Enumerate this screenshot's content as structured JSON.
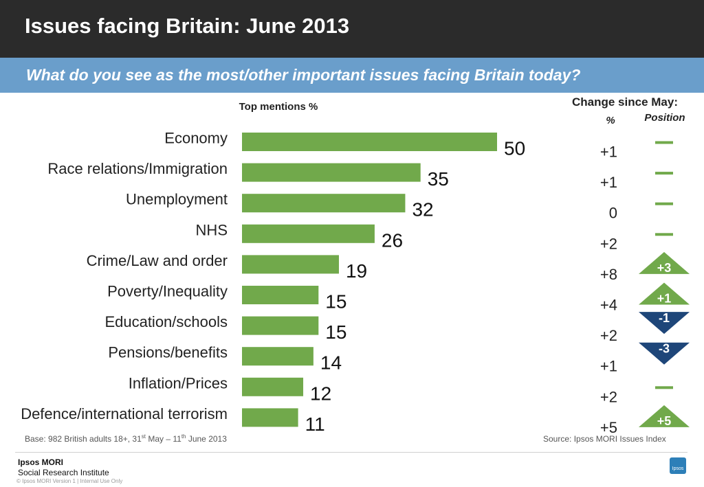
{
  "header": {
    "title": "Issues facing Britain: June 2013",
    "question": "What do you see as the most/other important issues facing Britain today?"
  },
  "chart_data": {
    "type": "bar",
    "orientation": "horizontal",
    "title": "Issues facing Britain: June 2013",
    "value_header": "Top mentions %",
    "change_header": "Change since May:",
    "change_pct_header": "%",
    "change_position_header": "Position",
    "categories": [
      "Economy",
      "Race relations/Immigration",
      "Unemployment",
      "NHS",
      "Crime/Law and order",
      "Poverty/Inequality",
      "Education/schools",
      "Pensions/benefits",
      "Inflation/Prices",
      "Defence/international terrorism"
    ],
    "values": [
      50,
      35,
      32,
      26,
      19,
      15,
      15,
      14,
      12,
      11
    ],
    "change_pct": [
      "+1",
      "+1",
      "0",
      "+2",
      "+8",
      "+4",
      "+2",
      "+1",
      "+2",
      "+5"
    ],
    "position_change": [
      "none",
      "none",
      "none",
      "none",
      "+3",
      "+1",
      "-1",
      "-3",
      "none",
      "+5"
    ],
    "xlim": [
      0,
      100
    ],
    "colors": {
      "bar": "#71a94b",
      "up": "#71a94b",
      "down": "#1e4679",
      "dash": "#71a94b"
    }
  },
  "notes": {
    "base_pre": "Base: 982 British adults 18+, 31",
    "base_sup1": "st",
    "base_mid": " May – 11",
    "base_sup2": "th",
    "base_post": " June 2013",
    "source": "Source: Ipsos MORI  Issues Index"
  },
  "footer": {
    "org_name": "Ipsos MORI",
    "org_sub": "Social Research Institute",
    "copyright": "© Ipsos MORI    Version 1 | Internal Use Only",
    "badge": "Ipsos"
  }
}
